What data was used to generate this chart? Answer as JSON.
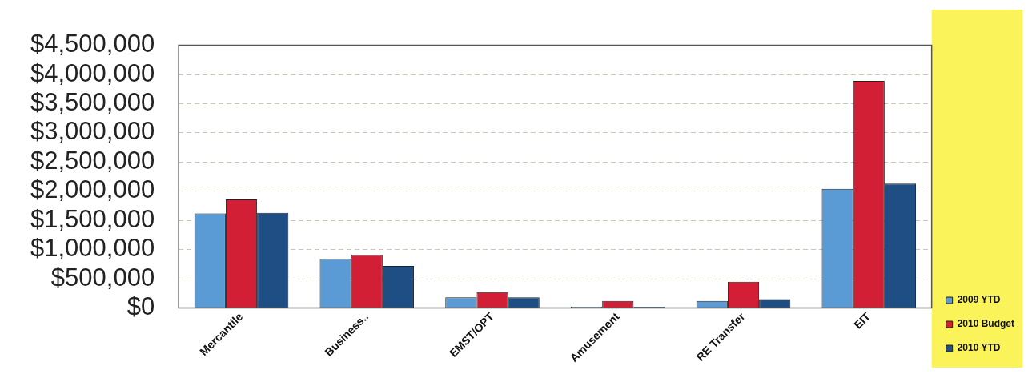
{
  "chart_data": {
    "type": "bar",
    "categories": [
      "Mercantile",
      "Business..",
      "EMST/OPT",
      "Amusement",
      "RE Transfer",
      "EIT"
    ],
    "series": [
      {
        "name": "2009 YTD",
        "color": "#5b9bd5",
        "values": [
          1620000,
          840000,
          180000,
          20000,
          120000,
          2040000
        ]
      },
      {
        "name": "2010 Budget",
        "color": "#d21f35",
        "values": [
          1860000,
          910000,
          270000,
          120000,
          450000,
          3890000
        ]
      },
      {
        "name": "2010 YTD",
        "color": "#1f4e85",
        "values": [
          1630000,
          720000,
          180000,
          20000,
          150000,
          2130000
        ]
      }
    ],
    "ylim": [
      0,
      4500000
    ],
    "yticks": [
      {
        "value": 0,
        "label": "$0"
      },
      {
        "value": 500000,
        "label": "$500,000"
      },
      {
        "value": 1000000,
        "label": "$1,000,000"
      },
      {
        "value": 1500000,
        "label": "$1,500,000"
      },
      {
        "value": 2000000,
        "label": "$2,000,000"
      },
      {
        "value": 2500000,
        "label": "$2,500,000"
      },
      {
        "value": 3000000,
        "label": "$3,000,000"
      },
      {
        "value": 3500000,
        "label": "$3,500,000"
      },
      {
        "value": 4000000,
        "label": "$4,000,000"
      },
      {
        "value": 4500000,
        "label": "$4,500,000"
      }
    ],
    "grid": "y",
    "legend": "bottom right"
  }
}
